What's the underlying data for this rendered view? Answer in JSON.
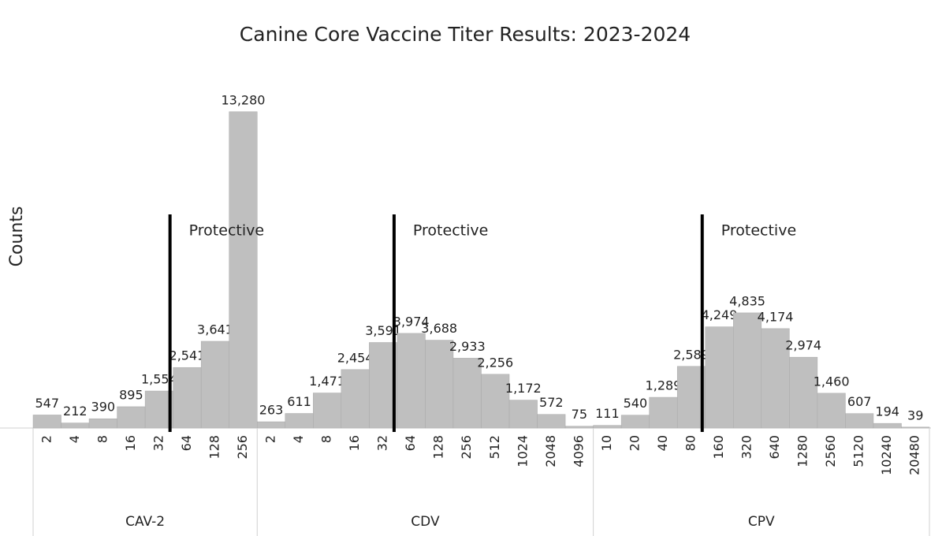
{
  "chart_data": {
    "type": "bar",
    "title": "Canine Core Vaccine Titer Results: 2023-2024",
    "y_label": "Counts",
    "color": "#bfbfbf",
    "ylim": [
      0,
      14000
    ],
    "groups": [
      {
        "name": "CAV-2",
        "categories": [
          "2",
          "4",
          "8",
          "16",
          "32",
          "64",
          "128",
          "256"
        ],
        "values": [
          547,
          212,
          390,
          895,
          1554,
          2541,
          3641,
          13280
        ],
        "value_labels": [
          "547",
          "212",
          "390",
          "895",
          "1,554",
          "2,541",
          "3,641",
          "13,280"
        ],
        "annotation": {
          "text": "Protective",
          "after": "32"
        }
      },
      {
        "name": "CDV",
        "categories": [
          "2",
          "4",
          "8",
          "16",
          "32",
          "64",
          "128",
          "256",
          "512",
          "1024",
          "2048",
          "4096"
        ],
        "values": [
          263,
          611,
          1471,
          2454,
          3591,
          3974,
          3688,
          2933,
          2256,
          1172,
          572,
          75
        ],
        "value_labels": [
          "263",
          "611",
          "1,471",
          "2,454",
          "3,591",
          "3,974",
          "3,688",
          "2,933",
          "2,256",
          "1,172",
          "572",
          "75"
        ],
        "annotation": {
          "text": "Protective",
          "after": "32"
        }
      },
      {
        "name": "CPV",
        "categories": [
          "10",
          "20",
          "40",
          "80",
          "160",
          "320",
          "640",
          "1280",
          "2560",
          "5120",
          "10240",
          "20480"
        ],
        "values": [
          111,
          540,
          1289,
          2589,
          4249,
          4835,
          4174,
          2974,
          1460,
          607,
          194,
          39
        ],
        "value_labels": [
          "111",
          "540",
          "1,289",
          "2,589",
          "4,249",
          "4,835",
          "4,174",
          "2,974",
          "1,460",
          "607",
          "194",
          "39"
        ],
        "annotation": {
          "text": "Protective",
          "after": "80"
        }
      }
    ]
  }
}
